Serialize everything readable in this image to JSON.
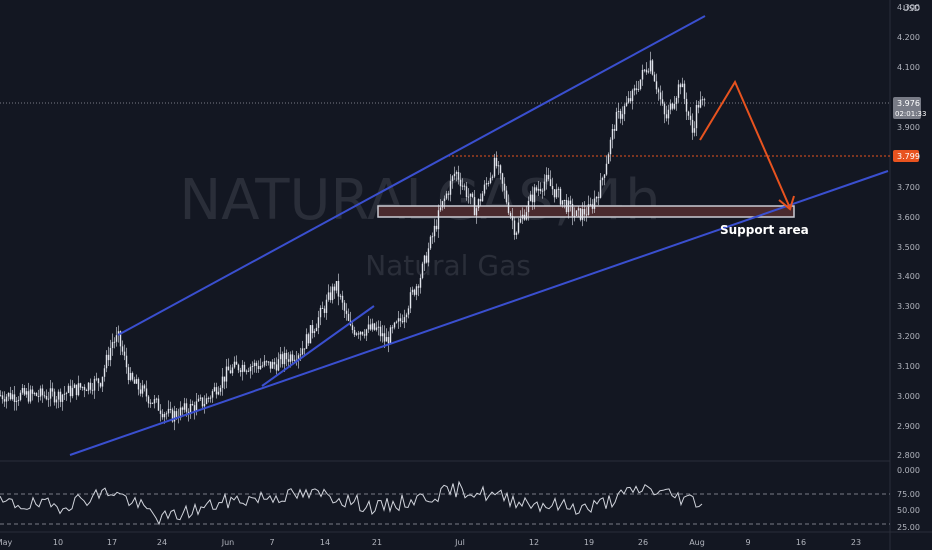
{
  "watermark": {
    "symbol": "NATURALGAS, 4h",
    "description": "Natural Gas"
  },
  "price_scale": {
    "currency": "USD",
    "ticks": [
      "4.300",
      "4.200",
      "4.100",
      "4.000",
      "3.900",
      "3.800",
      "3.700",
      "3.600",
      "3.500",
      "3.400",
      "3.300",
      "3.200",
      "3.100",
      "3.000",
      "2.900",
      "2.800"
    ],
    "last_price_label": "3.976",
    "countdown_label": "02:01:33",
    "level_label": "3.799"
  },
  "rsi_scale": {
    "ticks": [
      "0.000",
      "75.00",
      "50.00",
      "25.00"
    ]
  },
  "time_axis": {
    "ticks": [
      "May",
      "10",
      "17",
      "24",
      "Jun",
      "7",
      "14",
      "21",
      "Jul",
      "12",
      "19",
      "26",
      "Aug",
      "9",
      "16",
      "23"
    ]
  },
  "annotations": {
    "support_label": "Support area"
  },
  "colors": {
    "background": "#131722",
    "candle": "#e0e3eb",
    "trendline": "#3a4fcf",
    "projection": "#e8531f",
    "level_line": "#e8531f",
    "support_fill": "#4a2a2e",
    "support_border": "#c9ccd4",
    "rsi_line": "#d1d4dc",
    "last_price_badge": "#787b86",
    "level_badge": "#e8531f"
  },
  "chart_data": [
    {
      "type": "candlestick",
      "timeframe": "4h",
      "ylim": [
        2.78,
        4.32
      ],
      "x": [
        "May",
        "10",
        "17",
        "24",
        "Jun",
        "7",
        "14",
        "21",
        "Jul",
        "12",
        "19",
        "26",
        "Aug"
      ],
      "close": [
        3.0,
        3.0,
        3.18,
        2.95,
        3.08,
        3.1,
        3.3,
        3.25,
        3.7,
        3.7,
        3.65,
        4.05,
        3.976
      ],
      "horizontal_level": 3.799,
      "support_zone": [
        3.58,
        3.62
      ]
    },
    {
      "type": "line",
      "name": "RSI",
      "ylim": [
        20,
        85
      ],
      "reference_levels": [
        75,
        25
      ],
      "x": [
        "May",
        "10",
        "17",
        "24",
        "Jun",
        "7",
        "14",
        "21",
        "Jul",
        "12",
        "19",
        "26",
        "Aug"
      ],
      "values": [
        52,
        48,
        70,
        30,
        55,
        62,
        65,
        45,
        72,
        52,
        45,
        74,
        55
      ]
    }
  ]
}
